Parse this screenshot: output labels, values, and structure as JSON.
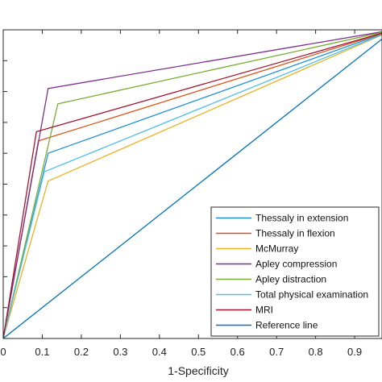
{
  "chart_data": {
    "type": "line",
    "title": "",
    "xlabel": "1-Specificity",
    "ylabel": "",
    "xlim": [
      0,
      0.97
    ],
    "ylim": [
      0,
      1.0
    ],
    "x_ticks": [
      "0",
      "0.1",
      "0.2",
      "0.3",
      "0.4",
      "0.5",
      "0.6",
      "0.7",
      "0.8",
      "0.9"
    ],
    "x_tick_values": [
      0,
      0.1,
      0.2,
      0.3,
      0.4,
      0.5,
      0.6,
      0.7,
      0.8,
      0.9
    ],
    "y_tick_values": [
      0,
      0.1,
      0.2,
      0.3,
      0.4,
      0.5,
      0.6,
      0.7,
      0.8,
      0.9,
      1.0
    ],
    "grid": false,
    "legend_position": "bottom-right",
    "series": [
      {
        "name": "Thessaly in extension",
        "color": "#1f8fd6",
        "x": [
          0,
          0.115,
          1
        ],
        "y": [
          0,
          0.6,
          1
        ]
      },
      {
        "name": "Thessaly in flexion",
        "color": "#d95319",
        "x": [
          0,
          0.09,
          1
        ],
        "y": [
          0,
          0.64,
          1
        ]
      },
      {
        "name": "McMurray",
        "color": "#edb120",
        "x": [
          0,
          0.115,
          1
        ],
        "y": [
          0,
          0.51,
          1
        ]
      },
      {
        "name": "Apley compression",
        "color": "#7e2f8e",
        "x": [
          0,
          0.115,
          1
        ],
        "y": [
          0,
          0.81,
          1
        ]
      },
      {
        "name": "Apley distraction",
        "color": "#77ac30",
        "x": [
          0,
          0.14,
          1
        ],
        "y": [
          0,
          0.76,
          1
        ]
      },
      {
        "name": "Total physical examination",
        "color": "#4dbeee",
        "x": [
          0,
          0.105,
          1
        ],
        "y": [
          0,
          0.54,
          1
        ]
      },
      {
        "name": "MRI",
        "color": "#a2142f",
        "x": [
          0,
          0.085,
          1
        ],
        "y": [
          0,
          0.67,
          1
        ]
      },
      {
        "name": "Reference line",
        "color": "#0072bd",
        "x": [
          0,
          1
        ],
        "y": [
          0,
          1
        ]
      }
    ]
  }
}
